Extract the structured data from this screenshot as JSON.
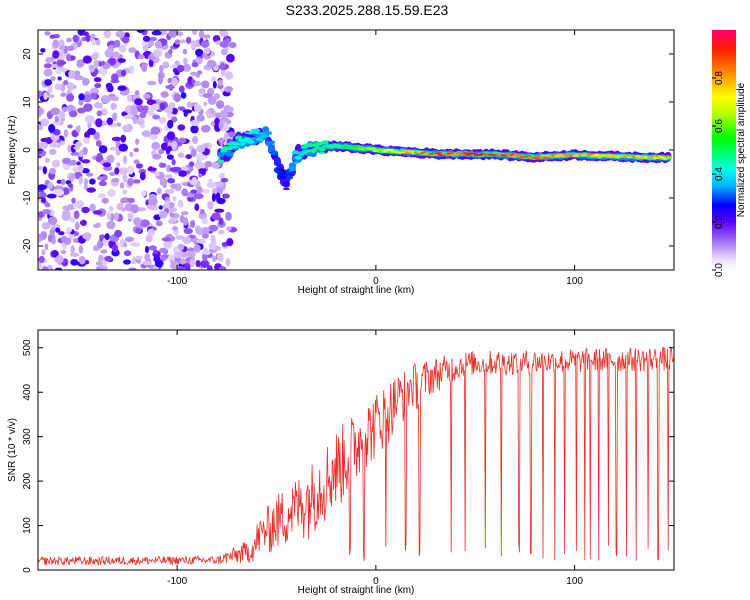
{
  "title": "S233.2025.288.15.59.E23",
  "chart_data": [
    {
      "type": "heatmap",
      "name": "spectrogram",
      "xlabel": "Height of straight line (km)",
      "ylabel": "Frequency (Hz)",
      "xlim": [
        -170,
        150
      ],
      "ylim": [
        -25,
        25
      ],
      "xticks": [
        -100,
        0,
        100
      ],
      "yticks": [
        -20,
        -10,
        0,
        10,
        20
      ],
      "colorbar": {
        "label": "Normalized spectral amplitude",
        "range": [
          0,
          1
        ],
        "ticks": [
          0,
          0.2,
          0.4,
          0.6,
          0.8
        ]
      },
      "noise_region_x": [
        -170,
        -78
      ],
      "signal_track": [
        {
          "x": -78,
          "y": -1.5,
          "amp": 0.5
        },
        {
          "x": -70,
          "y": 1.5,
          "amp": 0.45
        },
        {
          "x": -60,
          "y": 3,
          "amp": 0.4
        },
        {
          "x": -55,
          "y": 4,
          "amp": 0.35
        },
        {
          "x": -50,
          "y": -3,
          "amp": 0.3
        },
        {
          "x": -45,
          "y": -7,
          "amp": 0.25
        },
        {
          "x": -40,
          "y": -1,
          "amp": 0.4
        },
        {
          "x": -30,
          "y": 0.5,
          "amp": 0.55
        },
        {
          "x": -20,
          "y": 0.8,
          "amp": 0.5
        },
        {
          "x": -10,
          "y": 0.5,
          "amp": 0.6
        },
        {
          "x": 0,
          "y": 0,
          "amp": 0.7
        },
        {
          "x": 30,
          "y": -0.8,
          "amp": 0.95
        },
        {
          "x": 60,
          "y": -0.9,
          "amp": 0.95
        },
        {
          "x": 80,
          "y": -1.5,
          "amp": 0.9
        },
        {
          "x": 100,
          "y": -1.0,
          "amp": 0.85
        },
        {
          "x": 130,
          "y": -1.5,
          "amp": 0.85
        },
        {
          "x": 148,
          "y": -1.6,
          "amp": 0.8
        }
      ]
    },
    {
      "type": "line",
      "name": "snr",
      "xlabel": "Height of straight line (km)",
      "ylabel": "SNR (10 * v/v)",
      "xlim": [
        -170,
        150
      ],
      "ylim": [
        0,
        540
      ],
      "xticks": [
        -100,
        0,
        100
      ],
      "yticks": [
        0,
        100,
        200,
        300,
        400,
        500
      ],
      "color": "#e8302a",
      "envelope": [
        {
          "x": -170,
          "mean": 20,
          "spread": 15
        },
        {
          "x": -80,
          "mean": 22,
          "spread": 15
        },
        {
          "x": -65,
          "mean": 40,
          "spread": 40
        },
        {
          "x": -50,
          "mean": 90,
          "spread": 90
        },
        {
          "x": -35,
          "mean": 130,
          "spread": 110
        },
        {
          "x": -20,
          "mean": 200,
          "spread": 130
        },
        {
          "x": -5,
          "mean": 280,
          "spread": 110
        },
        {
          "x": 10,
          "mean": 360,
          "spread": 90
        },
        {
          "x": 25,
          "mean": 430,
          "spread": 55
        },
        {
          "x": 45,
          "mean": 465,
          "spread": 35
        },
        {
          "x": 150,
          "mean": 475,
          "spread": 35
        }
      ],
      "dropouts_x": [
        -13,
        -6,
        5,
        15,
        22,
        38,
        45,
        55,
        63,
        72,
        78,
        84,
        90,
        95,
        101,
        105,
        108,
        112,
        117,
        121,
        126,
        131,
        137,
        142,
        147
      ]
    }
  ]
}
